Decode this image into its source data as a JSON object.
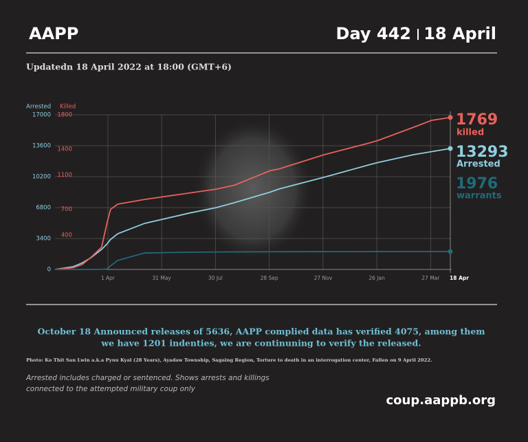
{
  "header": {
    "brand": "AAPP",
    "day": "Day 442",
    "date": "18 April",
    "updated": "Updatedn 18 April 2022 at 18:00 (GMT+6)"
  },
  "chart_data": {
    "type": "line",
    "y_label": "Arrested",
    "y2_label": "Killed",
    "x": [
      0,
      20,
      30,
      40,
      52,
      58,
      62,
      70,
      100,
      150,
      180,
      200,
      240,
      250,
      300,
      350,
      360,
      400,
      420,
      441
    ],
    "xlim": [
      0,
      441
    ],
    "xticks": [
      {
        "value": 59,
        "label": "1 Apr"
      },
      {
        "value": 119,
        "label": "31 May"
      },
      {
        "value": 179,
        "label": "30 Jul"
      },
      {
        "value": 239,
        "label": "28 Sep"
      },
      {
        "value": 299,
        "label": "27 Nov"
      },
      {
        "value": 359,
        "label": "26 Jan"
      },
      {
        "value": 419,
        "label": "27 Mar"
      },
      {
        "value": 441,
        "label": "18 Apr"
      }
    ],
    "ylim": [
      0,
      17000
    ],
    "yticks": [
      0,
      3400,
      6800,
      10200,
      13600,
      17000
    ],
    "y2lim": [
      0,
      1800
    ],
    "y2ticks": [
      400,
      700,
      1100,
      1400,
      1800
    ],
    "grid": true,
    "series": [
      {
        "name": "Arrested",
        "color": "#8ecfe0",
        "values": [
          0,
          300,
          700,
          1285,
          2200,
          2800,
          3300,
          3930,
          5065,
          6200,
          6800,
          7335,
          8500,
          8850,
          10130,
          11490,
          11750,
          12620,
          12950,
          13293
        ]
      },
      {
        "name": "killed",
        "color": "#e8625c",
        "axis": "y2",
        "values": [
          0,
          20,
          55,
          140,
          260,
          540,
          700,
          760,
          815,
          890,
          935,
          980,
          1150,
          1170,
          1335,
          1470,
          1500,
          1655,
          1735,
          1769
        ]
      },
      {
        "name": "warrants",
        "color": "#1f6b79",
        "values": [
          0,
          0,
          0,
          0,
          20,
          50,
          400,
          1000,
          1810,
          1900,
          1920,
          1930,
          1945,
          1950,
          1960,
          1965,
          1968,
          1972,
          1974,
          1976
        ]
      }
    ]
  },
  "notes": {
    "announcement": [
      "October 18 Announced releases of 5636, AAPP complied data has verified 4075, among them",
      "we have 1201 indenties, we are continuning to verify the released."
    ],
    "photo": "Photo: Ko Thit San Lwin a.k.a Pyuu Kyal (28 Years), Ayadaw Township, Sagaing Region, Torture to death in an interrogation center, Fallen on 9 April 2022.",
    "footnote": [
      "Arrested includes charged or sentenced. Shows arrests and killings",
      "connected to the attempted military coup only"
    ],
    "website": "coup.aappb.org"
  }
}
